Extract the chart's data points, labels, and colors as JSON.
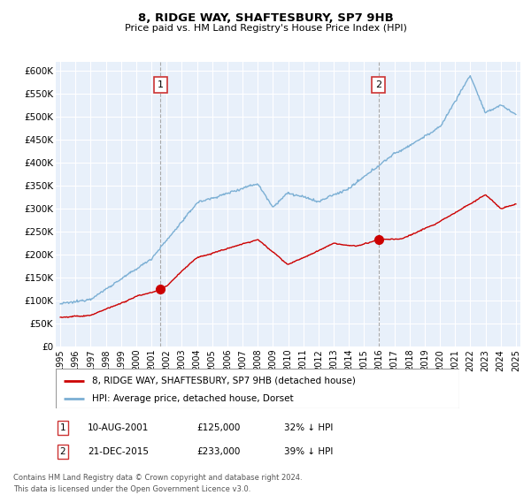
{
  "title": "8, RIDGE WAY, SHAFTESBURY, SP7 9HB",
  "subtitle": "Price paid vs. HM Land Registry's House Price Index (HPI)",
  "ylim": [
    0,
    620000
  ],
  "xlim_start": 1994.7,
  "xlim_end": 2025.3,
  "sale1_year": 2001.6,
  "sale1_price": 125000,
  "sale1_label": "1",
  "sale1_date": "10-AUG-2001",
  "sale1_hpi_pct": "32% ↓ HPI",
  "sale2_year": 2015.95,
  "sale2_price": 233000,
  "sale2_label": "2",
  "sale2_date": "21-DEC-2015",
  "sale2_hpi_pct": "39% ↓ HPI",
  "legend_property": "8, RIDGE WAY, SHAFTESBURY, SP7 9HB (detached house)",
  "legend_hpi": "HPI: Average price, detached house, Dorset",
  "footer": "Contains HM Land Registry data © Crown copyright and database right 2024.\nThis data is licensed under the Open Government Licence v3.0.",
  "property_color": "#cc0000",
  "hpi_color": "#7bafd4",
  "plot_bg": "#e8f0fa",
  "vline_color": "#999999"
}
